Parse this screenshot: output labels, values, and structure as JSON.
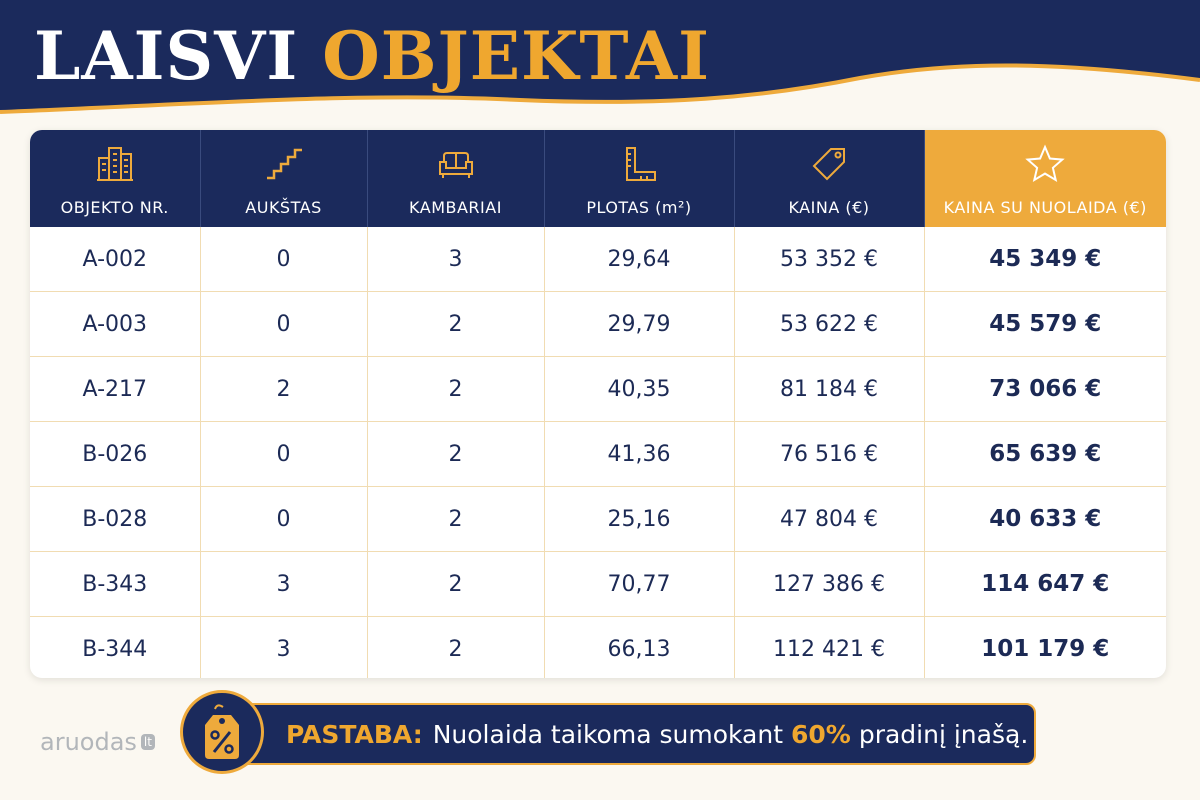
{
  "title": {
    "part1": "LAISVI",
    "part2": "OBJEKTAI"
  },
  "colors": {
    "navy": "#1b2a5c",
    "gold": "#efa72f",
    "highlight": "#eeaa3c",
    "background": "#fbf8f1"
  },
  "table": {
    "columns": [
      {
        "label": "OBJEKTO NR.",
        "icon": "building-icon"
      },
      {
        "label": "AUKŠTAS",
        "icon": "stairs-icon"
      },
      {
        "label": "KAMBARIAI",
        "icon": "sofa-icon"
      },
      {
        "label": "PLOTAS (m²)",
        "icon": "ruler-icon"
      },
      {
        "label": "KAINA (€)",
        "icon": "price-tag-icon"
      },
      {
        "label": "KAINA SU NUOLAIDA (€)",
        "icon": "star-icon"
      }
    ],
    "rows": [
      [
        "A-002",
        "0",
        "3",
        "29,64",
        "53 352 €",
        "45 349 €"
      ],
      [
        "A-003",
        "0",
        "2",
        "29,79",
        "53 622 €",
        "45 579 €"
      ],
      [
        "A-217",
        "2",
        "2",
        "40,35",
        "81 184 €",
        "73 066 €"
      ],
      [
        "B-026",
        "0",
        "2",
        "41,36",
        "76 516 €",
        "65 639 €"
      ],
      [
        "B-028",
        "0",
        "2",
        "25,16",
        "47 804 €",
        "40 633 €"
      ],
      [
        "B-343",
        "3",
        "2",
        "70,77",
        "127 386 €",
        "114 647 €"
      ],
      [
        "B-344",
        "3",
        "2",
        "66,13",
        "112 421 €",
        "101 179 €"
      ]
    ]
  },
  "note": {
    "icon": "percent-tag-icon",
    "label": "PASTABA:",
    "text_before": "Nuolaida taikoma sumokant",
    "highlight": "60%",
    "text_after": "pradinį įnašą."
  },
  "watermark": {
    "text": "aruodas",
    "suffix": "lt"
  }
}
